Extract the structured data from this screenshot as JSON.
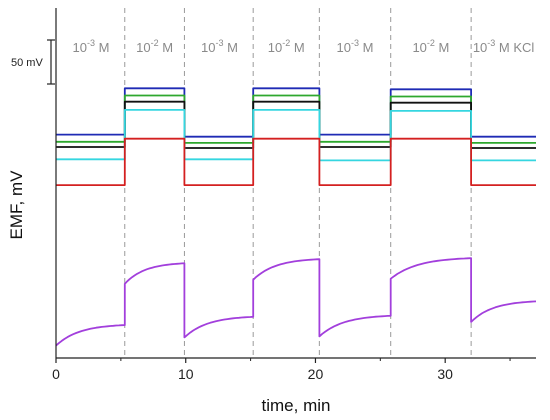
{
  "chart_data": {
    "type": "line",
    "xlabel": "time, min",
    "ylabel": "EMF, mV",
    "xlim": [
      0,
      37
    ],
    "ylim": [
      0,
      340
    ],
    "x_ticks": [
      0,
      10,
      20,
      30
    ],
    "x_tick_labels": [
      "0",
      "10",
      "20",
      "30"
    ],
    "y_ticks_shown": false,
    "scale_bar": {
      "label": "50 mV",
      "value": 50
    },
    "switch_times": [
      5.3,
      9.9,
      15.2,
      20.3,
      25.8,
      32.0
    ],
    "regions": [
      {
        "base": "10",
        "exp": "-3",
        "unit": "M",
        "center": 2.7
      },
      {
        "base": "10",
        "exp": "-2",
        "unit": "M",
        "center": 7.6
      },
      {
        "base": "10",
        "exp": "-3",
        "unit": "M",
        "center": 12.6
      },
      {
        "base": "10",
        "exp": "-2",
        "unit": "M",
        "center": 17.75
      },
      {
        "base": "10",
        "exp": "-3",
        "unit": "M",
        "center": 23.05
      },
      {
        "base": "10",
        "exp": "-2",
        "unit": "M",
        "center": 28.9
      },
      {
        "base": "10",
        "exp": "-3",
        "unit": "M KCl",
        "center": 34.5
      }
    ],
    "series": [
      {
        "color": "#1f2bb5",
        "levels": [
          217,
          262,
          215,
          262,
          217,
          261,
          215
        ],
        "drift": 0
      },
      {
        "color": "#2ea82e",
        "levels": [
          210,
          255,
          209,
          255,
          210,
          254,
          209
        ],
        "drift": 0
      },
      {
        "color": "#111111",
        "levels": [
          205,
          249,
          204,
          249,
          205,
          248,
          204
        ],
        "drift": 0
      },
      {
        "color": "#35d6e0",
        "levels": [
          193,
          241,
          193,
          241,
          192,
          240,
          192
        ],
        "drift": 0
      },
      {
        "color": "#d42020",
        "levels": [
          168,
          213,
          168,
          213,
          168,
          213,
          168
        ],
        "drift": 0
      },
      {
        "color": "#a23fdc",
        "levels": [
          12,
          72,
          20,
          76,
          21,
          77,
          35
        ],
        "drift": 20
      }
    ]
  }
}
